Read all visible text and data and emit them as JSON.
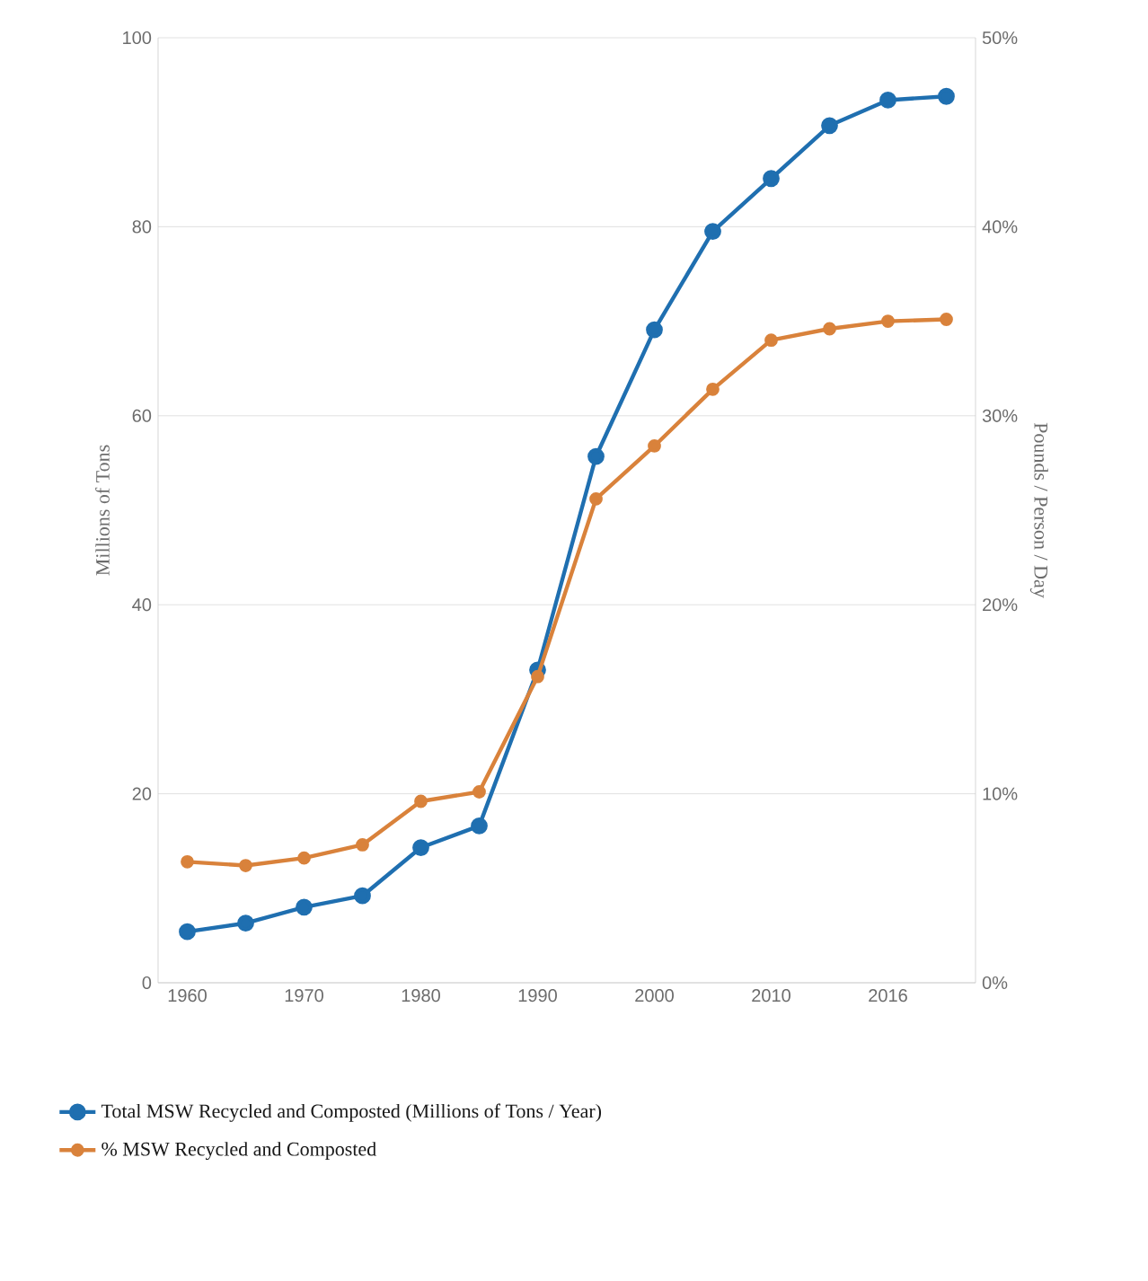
{
  "chart_data": {
    "type": "line",
    "categories": [
      "1960",
      null,
      "1970",
      null,
      "1980",
      null,
      "1990",
      null,
      "2000",
      null,
      "2010",
      null,
      "2016",
      null
    ],
    "series": [
      {
        "name": "Total MSW Recycled and Composted (Millions of Tons / Year)",
        "color": "#1f6fb0",
        "values": [
          5.4,
          6.3,
          8.0,
          9.2,
          14.3,
          16.6,
          33.1,
          55.7,
          69.1,
          79.5,
          85.1,
          90.7,
          93.4,
          93.8
        ]
      },
      {
        "name": "% MSW Recycled and Composted",
        "color": "#d9823b",
        "axis": "y2",
        "values": [
          6.4,
          6.2,
          6.6,
          7.3,
          9.6,
          10.1,
          16.2,
          25.6,
          28.4,
          31.4,
          34.0,
          34.6,
          35.0,
          35.1
        ]
      }
    ],
    "ylabel": "Millions of Tons",
    "y2label": "Pounds / Person / Day",
    "ylim": [
      0,
      100
    ],
    "yticks": [
      0,
      20,
      40,
      60,
      80,
      100
    ],
    "y2lim": [
      0,
      50
    ],
    "y2ticks": [
      {
        "value": 0,
        "label": "0%"
      },
      {
        "value": 10,
        "label": "10%"
      },
      {
        "value": 20,
        "label": "20%"
      },
      {
        "value": 30,
        "label": "30%"
      },
      {
        "value": 40,
        "label": "40%"
      },
      {
        "value": 50,
        "label": "50%"
      }
    ],
    "grid": "y",
    "legend": "bottom left",
    "marker": "circle",
    "line_style": "solid"
  }
}
